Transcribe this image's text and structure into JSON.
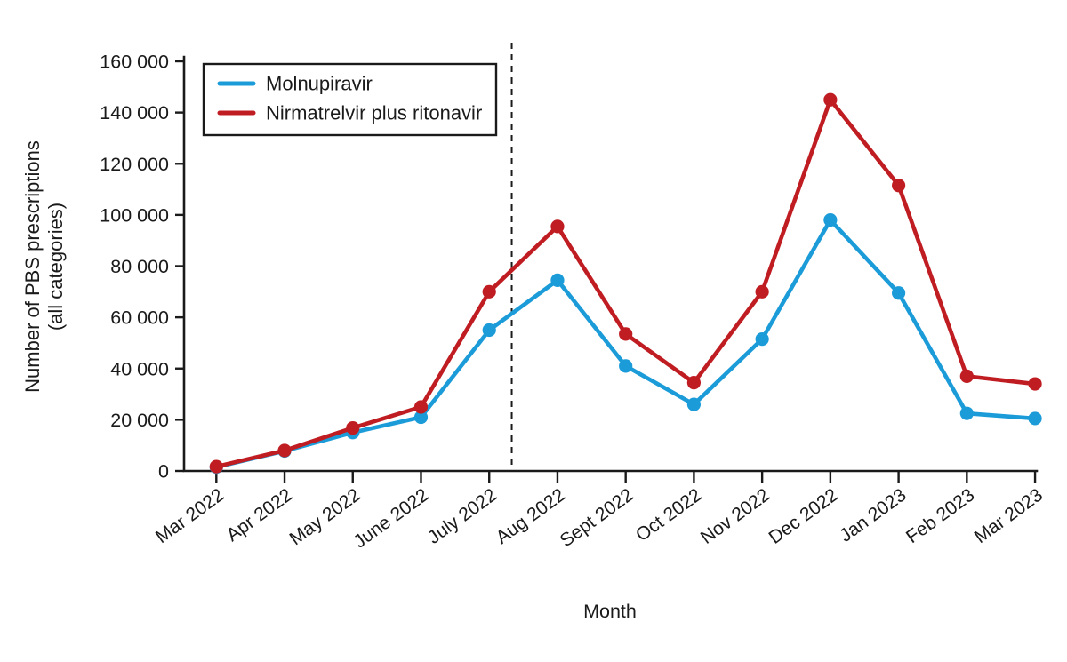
{
  "figure": {
    "background": "#ffffff",
    "axis_color": "#1a1a1a",
    "xlabel": "Month",
    "ylabel_line1": "Number of PBS prescriptions",
    "ylabel_line2": "(all categories)"
  },
  "legend": {
    "position": "top-left",
    "items": [
      {
        "label": "Molnupiravir",
        "color": "#1b9cd9"
      },
      {
        "label": "Nirmatrelvir plus ritonavir",
        "color": "#c01d23"
      }
    ]
  },
  "chart_data": {
    "type": "line",
    "title": "",
    "xlabel": "Month",
    "ylabel": "Number of PBS prescriptions (all categories)",
    "categories": [
      "Mar 2022",
      "Apr 2022",
      "May 2022",
      "June 2022",
      "July 2022",
      "Aug 2022",
      "Sept 2022",
      "Oct 2022",
      "Nov 2022",
      "Dec 2022",
      "Jan 2023",
      "Feb 2023",
      "Mar 2023"
    ],
    "series": [
      {
        "name": "Molnupiravir",
        "color": "#1b9cd9",
        "values": [
          1500,
          7800,
          15000,
          21000,
          55000,
          74500,
          41000,
          26000,
          51500,
          98000,
          69500,
          22500,
          20500
        ]
      },
      {
        "name": "Nirmatrelvir plus ritonavir",
        "color": "#c01d23",
        "values": [
          1700,
          8000,
          16800,
          25000,
          70000,
          95500,
          53500,
          34500,
          70000,
          145000,
          111500,
          37000,
          34000
        ]
      }
    ],
    "ylim": [
      0,
      160000
    ],
    "yticks": [
      {
        "value": 0,
        "label": "0"
      },
      {
        "value": 20000,
        "label": "20 000"
      },
      {
        "value": 40000,
        "label": "40 000"
      },
      {
        "value": 60000,
        "label": "60 000"
      },
      {
        "value": 80000,
        "label": "80 000"
      },
      {
        "value": 100000,
        "label": "100 000"
      },
      {
        "value": 120000,
        "label": "120 000"
      },
      {
        "value": 140000,
        "label": "140 000"
      },
      {
        "value": 160000,
        "label": "160 000"
      }
    ],
    "grid": false,
    "legend_position": "top-left",
    "annotations": [
      {
        "type": "vline-dashed",
        "x_index": 4.33,
        "between": [
          "July 2022",
          "Aug 2022"
        ],
        "color": "#1a1a1a"
      }
    ]
  }
}
